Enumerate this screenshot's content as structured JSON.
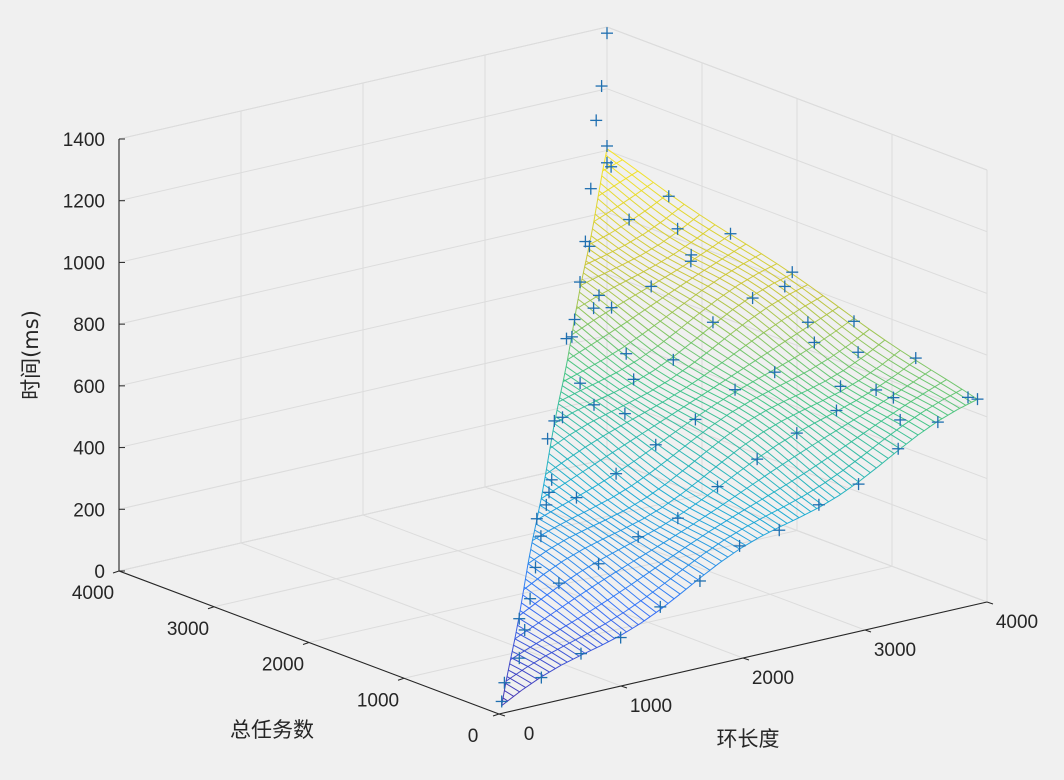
{
  "chart_data": {
    "type": "surface3d",
    "xlabel": "环长度",
    "ylabel": "总任务数",
    "zlabel": "时间(ms)",
    "xlim": [
      0,
      4000
    ],
    "ylim": [
      0,
      4000
    ],
    "zlim": [
      0,
      1400
    ],
    "xticks": [
      0,
      1000,
      2000,
      3000,
      4000
    ],
    "yticks": [
      0,
      1000,
      2000,
      3000,
      4000
    ],
    "zticks": [
      0,
      200,
      400,
      600,
      800,
      1000,
      1200,
      1400
    ],
    "xtick_labels": [
      "0",
      "1000",
      "2000",
      "3000",
      "4000"
    ],
    "ytick_labels": [
      "0",
      "1000",
      "2000",
      "3000",
      "4000"
    ],
    "ztick_labels": [
      "0",
      "200",
      "400",
      "600",
      "800",
      "1000",
      "1200",
      "1400"
    ],
    "grid": true,
    "colormap": "parula",
    "marker": "+",
    "marker_color": "#1f6fb0",
    "surface": {
      "domain": "y <= x",
      "x_range": [
        100,
        4000
      ],
      "y_range": [
        100,
        4000
      ],
      "z_corners": {
        "x0_y0": 0,
        "xmax_y0": 640,
        "xmax_ymax": 1000
      },
      "z_max_observed": 1000
    },
    "scatter_series": {
      "name": "",
      "points": [
        {
          "x": 4000,
          "y": 4000,
          "z": 960
        },
        {
          "x": 3800,
          "y": 3700,
          "z": 1000
        },
        {
          "x": 3800,
          "y": 3000,
          "z": 880
        },
        {
          "x": 3600,
          "y": 2600,
          "z": 860
        },
        {
          "x": 3900,
          "y": 2000,
          "z": 800
        },
        {
          "x": 3700,
          "y": 1500,
          "z": 760
        },
        {
          "x": 3800,
          "y": 1100,
          "z": 700
        },
        {
          "x": 3500,
          "y": 900,
          "z": 640
        },
        {
          "x": 3700,
          "y": 600,
          "z": 620
        },
        {
          "x": 3600,
          "y": 400,
          "z": 580
        },
        {
          "x": 4000,
          "y": 200,
          "z": 640
        },
        {
          "x": 3000,
          "y": 2800,
          "z": 760
        },
        {
          "x": 2800,
          "y": 2600,
          "z": 760
        },
        {
          "x": 2500,
          "y": 2500,
          "z": 700
        },
        {
          "x": 2600,
          "y": 2000,
          "z": 700
        },
        {
          "x": 2300,
          "y": 2100,
          "z": 620
        },
        {
          "x": 2000,
          "y": 1900,
          "z": 560
        },
        {
          "x": 2200,
          "y": 1500,
          "z": 600
        },
        {
          "x": 1800,
          "y": 1800,
          "z": 520
        },
        {
          "x": 1600,
          "y": 1500,
          "z": 440
        },
        {
          "x": 1500,
          "y": 1400,
          "z": 420
        },
        {
          "x": 1400,
          "y": 1300,
          "z": 400
        },
        {
          "x": 1200,
          "y": 1100,
          "z": 340
        },
        {
          "x": 1000,
          "y": 900,
          "z": 280
        },
        {
          "x": 800,
          "y": 700,
          "z": 220
        },
        {
          "x": 600,
          "y": 500,
          "z": 160
        },
        {
          "x": 400,
          "y": 300,
          "z": 110
        },
        {
          "x": 200,
          "y": 200,
          "z": 60
        },
        {
          "x": 100,
          "y": 100,
          "z": 20
        }
      ]
    },
    "outliers": [
      {
        "x": 4000,
        "y": 4000,
        "z": 1380
      },
      {
        "x": 3800,
        "y": 3800,
        "z": 1250
      },
      {
        "x": 3600,
        "y": 3600,
        "z": 1180
      },
      {
        "x": 3400,
        "y": 3400,
        "z": 1000
      },
      {
        "x": 3200,
        "y": 3200,
        "z": 870
      },
      {
        "x": 3000,
        "y": 3000,
        "z": 780
      },
      {
        "x": 2800,
        "y": 2800,
        "z": 700
      }
    ]
  }
}
